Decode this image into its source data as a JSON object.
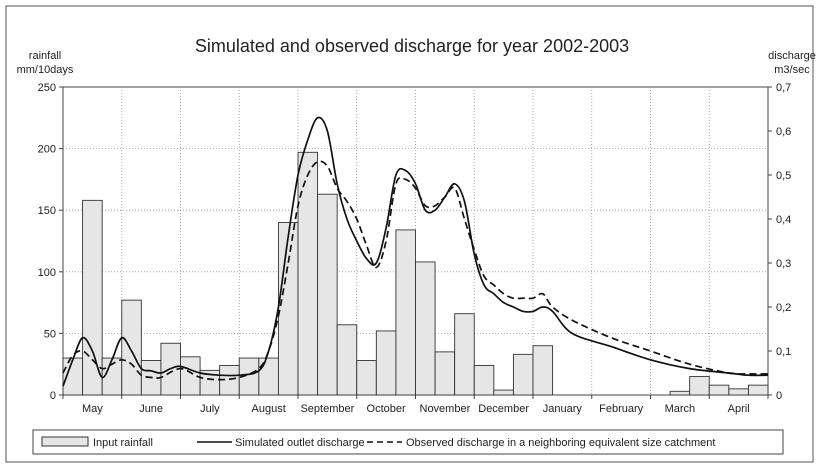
{
  "chart_data": {
    "type": "bar+line",
    "title": "Simulated and observed discharge for year 2002-2003",
    "y_left_label": "rainfall",
    "y_left_unit": "mm/10days",
    "y_right_label": "discharge",
    "y_right_unit": "m3/sec",
    "y_left_range": [
      0,
      250
    ],
    "y_right_range": [
      0,
      0.7
    ],
    "y_left_ticks": [
      "0",
      "50",
      "100",
      "150",
      "200",
      "250"
    ],
    "y_right_ticks": [
      "0",
      "0,1",
      "0,2",
      "0,3",
      "0,4",
      "0,5",
      "0,6",
      "0,7"
    ],
    "x_range": [
      0,
      36
    ],
    "grid": true,
    "legend_position": "bottom",
    "months": [
      {
        "label": "May",
        "pos": 1.5
      },
      {
        "label": "June",
        "pos": 4.5
      },
      {
        "label": "July",
        "pos": 7.5
      },
      {
        "label": "August",
        "pos": 10.5
      },
      {
        "label": "September",
        "pos": 13.5
      },
      {
        "label": "October",
        "pos": 16.5
      },
      {
        "label": "November",
        "pos": 19.5
      },
      {
        "label": "December",
        "pos": 22.5
      },
      {
        "label": "January",
        "pos": 25.5
      },
      {
        "label": "February",
        "pos": 28.5
      },
      {
        "label": "March",
        "pos": 31.5
      },
      {
        "label": "April",
        "pos": 34.5
      }
    ],
    "rainfall": {
      "name": "Input rainfall",
      "values": [
        30,
        158,
        30,
        77,
        28,
        42,
        31,
        20,
        24,
        30,
        30,
        140,
        197,
        163,
        57,
        28,
        52,
        134,
        108,
        35,
        66,
        24,
        4,
        33,
        40,
        0,
        0,
        0,
        0,
        0,
        0,
        3,
        15,
        8,
        5,
        8
      ]
    },
    "simulated": {
      "name": "Simulated outlet discharge",
      "x": [
        0,
        0.5,
        1,
        1.5,
        2,
        2.5,
        3,
        3.5,
        4,
        4.5,
        5,
        5.5,
        6,
        7,
        8,
        9,
        10,
        10.5,
        11,
        11.5,
        12,
        12.5,
        13,
        13.5,
        14,
        14.5,
        15,
        15.5,
        16,
        16.5,
        17,
        17.5,
        18,
        18.5,
        19,
        19.5,
        20,
        20.5,
        21,
        21.5,
        22,
        22.5,
        23,
        23.5,
        24,
        24.5,
        25,
        26,
        28,
        30,
        32,
        34,
        35,
        36
      ],
      "values": [
        0.02,
        0.08,
        0.13,
        0.1,
        0.04,
        0.08,
        0.13,
        0.1,
        0.06,
        0.055,
        0.05,
        0.06,
        0.065,
        0.05,
        0.045,
        0.045,
        0.055,
        0.1,
        0.2,
        0.36,
        0.5,
        0.58,
        0.63,
        0.6,
        0.48,
        0.4,
        0.35,
        0.31,
        0.3,
        0.38,
        0.5,
        0.51,
        0.48,
        0.42,
        0.42,
        0.45,
        0.48,
        0.44,
        0.32,
        0.25,
        0.23,
        0.21,
        0.2,
        0.19,
        0.19,
        0.2,
        0.19,
        0.14,
        0.11,
        0.08,
        0.06,
        0.05,
        0.045,
        0.045
      ]
    },
    "observed": {
      "name": "Observed discharge in a neighboring equivalent size catchment",
      "x": [
        0,
        0.5,
        1,
        1.5,
        2,
        2.5,
        3,
        3.5,
        4,
        4.5,
        5,
        6,
        7,
        8,
        9,
        10,
        10.5,
        11,
        11.5,
        12,
        12.5,
        13,
        13.5,
        14,
        14.5,
        15,
        15.5,
        16,
        16.5,
        17,
        17.5,
        18,
        18.5,
        19,
        19.5,
        20,
        20.5,
        21,
        21.5,
        22,
        22.5,
        23,
        23.5,
        24,
        24.5,
        25,
        26,
        28,
        30,
        32,
        34,
        35,
        36
      ],
      "values": [
        0.05,
        0.09,
        0.1,
        0.08,
        0.06,
        0.07,
        0.08,
        0.07,
        0.045,
        0.04,
        0.04,
        0.06,
        0.04,
        0.035,
        0.04,
        0.06,
        0.1,
        0.18,
        0.3,
        0.43,
        0.5,
        0.53,
        0.52,
        0.47,
        0.44,
        0.4,
        0.34,
        0.29,
        0.35,
        0.48,
        0.49,
        0.47,
        0.43,
        0.43,
        0.45,
        0.47,
        0.4,
        0.33,
        0.27,
        0.25,
        0.23,
        0.22,
        0.22,
        0.22,
        0.23,
        0.2,
        0.17,
        0.13,
        0.1,
        0.07,
        0.05,
        0.048,
        0.048
      ]
    }
  }
}
